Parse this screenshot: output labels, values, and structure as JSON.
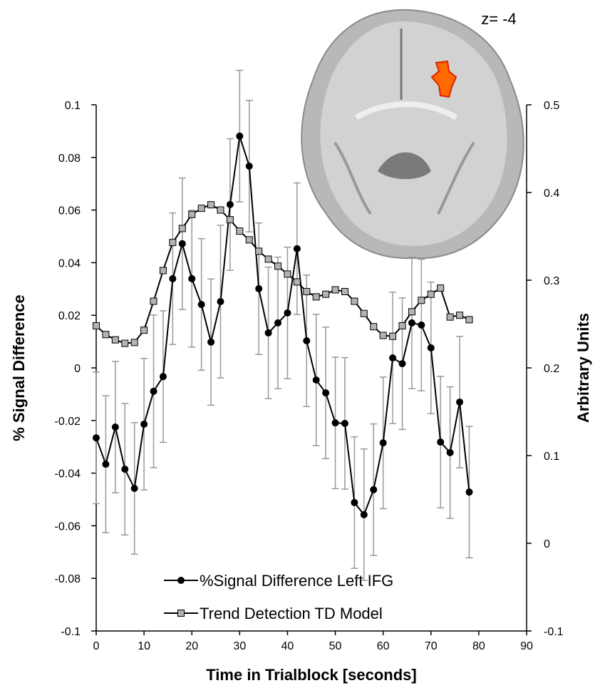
{
  "chart_data": {
    "type": "line",
    "xlabel": "Time in Trialblock [seconds]",
    "ylabel": "% Signal Difference",
    "y2label": "Arbitrary Units",
    "annotation": "z= -4",
    "x": [
      0,
      2,
      4,
      6,
      8,
      10,
      12,
      14,
      16,
      18,
      20,
      22,
      24,
      26,
      28,
      30,
      32,
      34,
      36,
      38,
      40,
      42,
      44,
      46,
      48,
      50,
      52,
      54,
      56,
      58,
      60,
      62,
      64,
      66,
      68,
      70,
      72,
      74,
      76,
      78
    ],
    "xlim": [
      0,
      90
    ],
    "xticks": [
      0,
      10,
      20,
      30,
      40,
      50,
      60,
      70,
      80,
      90
    ],
    "ylim": [
      -0.1,
      0.1
    ],
    "yticks": [
      0.1,
      0.08,
      0.06,
      0.04,
      0.02,
      0,
      -0.02,
      -0.04,
      -0.06,
      -0.08,
      -0.1
    ],
    "y2lim": [
      -0.1,
      0.5
    ],
    "y2ticks": [
      0.5,
      0.4,
      0.3,
      0.2,
      0.1,
      0,
      -0.1
    ],
    "error_color": "#999999",
    "series": [
      {
        "name": "%Signal Difference Left IFG",
        "color": "#000000",
        "marker": "circle",
        "values": [
          -0.0266,
          -0.0366,
          -0.0225,
          -0.0385,
          -0.0458,
          -0.0214,
          -0.0089,
          -0.0033,
          0.0339,
          0.0472,
          0.0339,
          0.0241,
          0.0098,
          0.0252,
          0.0621,
          0.0881,
          0.0767,
          0.0301,
          0.0133,
          0.0171,
          0.0209,
          0.0453,
          0.0103,
          -0.0046,
          -0.0095,
          -0.0209,
          -0.0211,
          -0.0512,
          -0.0558,
          -0.0463,
          -0.0285,
          0.0038,
          0.0016,
          0.0171,
          0.0163,
          0.0076,
          -0.0282,
          -0.0322,
          -0.013,
          -0.0472
        ],
        "errors": [
          0.025,
          0.026,
          0.025,
          0.025,
          0.025,
          0.025,
          0.029,
          0.025,
          0.025,
          0.025,
          0.026,
          0.025,
          0.024,
          0.029,
          0.025,
          0.025,
          0.025,
          0.025,
          0.025,
          0.025,
          0.025,
          0.025,
          0.025,
          0.025,
          0.025,
          0.025,
          0.025,
          0.025,
          0.025,
          0.025,
          0.025,
          0.025,
          0.025,
          0.025,
          0.025,
          0.025,
          0.025,
          0.025,
          0.025,
          0.025
        ]
      },
      {
        "name": "Trend Detection TD Model",
        "color": "#000000",
        "marker": "square",
        "marker_fill": "#b3b3b3",
        "axis": "y2",
        "values": [
          0.248,
          0.238,
          0.232,
          0.228,
          0.229,
          0.243,
          0.276,
          0.311,
          0.343,
          0.359,
          0.375,
          0.382,
          0.386,
          0.38,
          0.369,
          0.356,
          0.346,
          0.333,
          0.324,
          0.316,
          0.307,
          0.298,
          0.287,
          0.281,
          0.284,
          0.289,
          0.287,
          0.276,
          0.262,
          0.247,
          0.237,
          0.236,
          0.248,
          0.264,
          0.277,
          0.284,
          0.291,
          0.258,
          0.26,
          0.255
        ]
      }
    ]
  }
}
